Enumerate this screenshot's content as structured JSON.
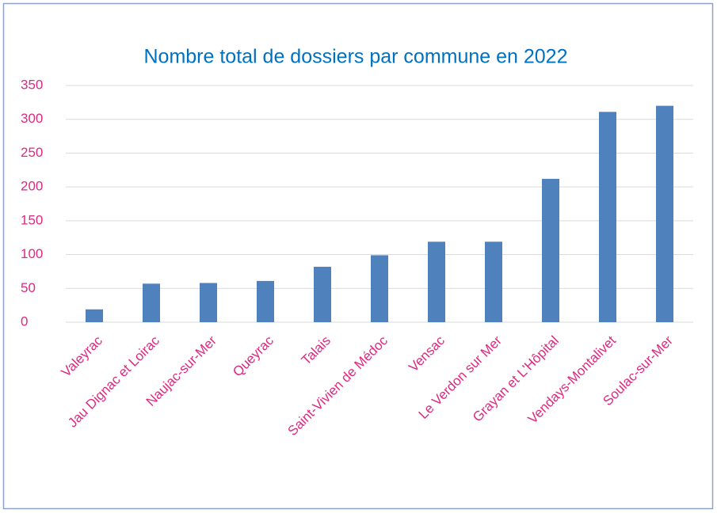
{
  "chart_data": {
    "type": "bar",
    "title": "Nombre total de dossiers par commune  en 2022",
    "categories": [
      "Valeyrac",
      "Jau Dignac et Loirac",
      "Naujac-sur-Mer",
      "Queyrac",
      "Talais",
      "Saint-Vivien de Médoc",
      "Vensac",
      "Le Verdon sur Mer",
      "Grayan et L'Hôpital",
      "Vendays-Montalivet",
      "Soulac-sur-Mer"
    ],
    "values": [
      19,
      57,
      58,
      61,
      82,
      99,
      119,
      119,
      212,
      311,
      320
    ],
    "color": "#4f81bd",
    "ylim": [
      0,
      350
    ],
    "yticks": [
      0,
      50,
      100,
      150,
      200,
      250,
      300,
      350
    ],
    "grid": true
  }
}
